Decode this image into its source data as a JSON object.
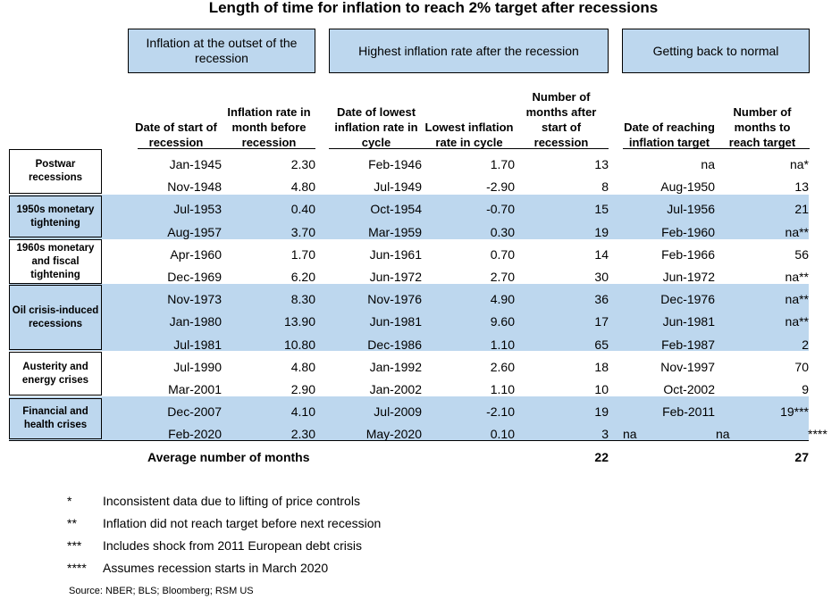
{
  "title": "Length of time for inflation to reach 2% target after recessions",
  "groups": [
    "Inflation at the outset of the recession",
    "Highest inflation rate after the recession",
    "Getting back to normal"
  ],
  "columns": [
    "Date of start of recession",
    "Inflation rate in month before recession",
    "Date of lowest inflation rate in cycle",
    "Lowest inflation rate in cycle",
    "Number of months after start of recession",
    "Date of reaching inflation target",
    "Number of months to reach target"
  ],
  "categories": [
    "Postwar recessions",
    "1950s monetary tightening",
    "1960s monetary and fiscal tightening",
    "Oil crisis-induced recessions",
    "Austerity and energy crises",
    "Financial and health crises"
  ],
  "rows": [
    {
      "start": "Jan-1945",
      "rate_before": "2.30",
      "low_date": "Feb-1946",
      "low_rate": "1.70",
      "months_after": "13",
      "target_date": "na",
      "months_to_target": "na*"
    },
    {
      "start": "Nov-1948",
      "rate_before": "4.80",
      "low_date": "Jul-1949",
      "low_rate": "-2.90",
      "months_after": "8",
      "target_date": "Aug-1950",
      "months_to_target": "13"
    },
    {
      "start": "Jul-1953",
      "rate_before": "0.40",
      "low_date": "Oct-1954",
      "low_rate": "-0.70",
      "months_after": "15",
      "target_date": "Jul-1956",
      "months_to_target": "21"
    },
    {
      "start": "Aug-1957",
      "rate_before": "3.70",
      "low_date": "Mar-1959",
      "low_rate": "0.30",
      "months_after": "19",
      "target_date": "Feb-1960",
      "months_to_target": "na**"
    },
    {
      "start": "Apr-1960",
      "rate_before": "1.70",
      "low_date": "Jun-1961",
      "low_rate": "0.70",
      "months_after": "14",
      "target_date": "Feb-1966",
      "months_to_target": "56"
    },
    {
      "start": "Dec-1969",
      "rate_before": "6.20",
      "low_date": "Jun-1972",
      "low_rate": "2.70",
      "months_after": "30",
      "target_date": "Jun-1972",
      "months_to_target": "na**"
    },
    {
      "start": "Nov-1973",
      "rate_before": "8.30",
      "low_date": "Nov-1976",
      "low_rate": "4.90",
      "months_after": "36",
      "target_date": "Dec-1976",
      "months_to_target": "na**"
    },
    {
      "start": "Jan-1980",
      "rate_before": "13.90",
      "low_date": "Jun-1981",
      "low_rate": "9.60",
      "months_after": "17",
      "target_date": "Jun-1981",
      "months_to_target": "na**"
    },
    {
      "start": "Jul-1981",
      "rate_before": "10.80",
      "low_date": "Dec-1986",
      "low_rate": "1.10",
      "months_after": "65",
      "target_date": "Feb-1987",
      "months_to_target": "2"
    },
    {
      "start": "Jul-1990",
      "rate_before": "4.80",
      "low_date": "Jan-1992",
      "low_rate": "2.60",
      "months_after": "18",
      "target_date": "Nov-1997",
      "months_to_target": "70"
    },
    {
      "start": "Mar-2001",
      "rate_before": "2.90",
      "low_date": "Jan-2002",
      "low_rate": "1.10",
      "months_after": "10",
      "target_date": "Oct-2002",
      "months_to_target": "9"
    },
    {
      "start": "Dec-2007",
      "rate_before": "4.10",
      "low_date": "Jul-2009",
      "low_rate": "-2.10",
      "months_after": "19",
      "target_date": "Feb-2011",
      "months_to_target": "19***"
    },
    {
      "start": "Feb-2020",
      "rate_before": "2.30",
      "low_date": "May-2020",
      "low_rate": "0.10",
      "months_after": "3",
      "target_date": "na",
      "months_to_target": "na",
      "extra": "****"
    }
  ],
  "average": {
    "label": "Average number of months",
    "months_after": "22",
    "months_to_target": "27"
  },
  "footnotes": [
    {
      "mark": "*",
      "text": "Inconsistent data due to lifting of price controls"
    },
    {
      "mark": "**",
      "text": "Inflation did not reach target before next recession"
    },
    {
      "mark": "***",
      "text": "Includes shock from 2011 European debt crisis"
    },
    {
      "mark": "****",
      "text": "Assumes recession starts in March 2020"
    }
  ],
  "source": "Source: NBER; BLS; Bloomberg; RSM US",
  "colors": {
    "band": "#bdd7ee",
    "border": "#000000"
  }
}
